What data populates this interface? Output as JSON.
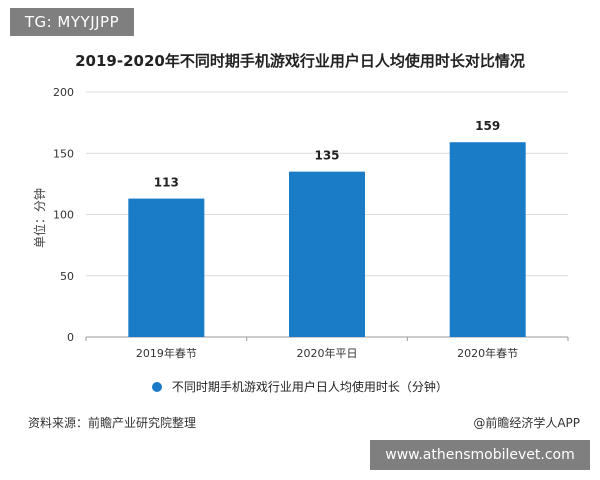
{
  "watermark_badge": "TG: MYYJJPP",
  "chart_data": {
    "type": "bar",
    "title": "2019-2020年不同时期手机游戏行业用户日人均使用时长对比情况",
    "categories": [
      "2019年春节",
      "2020年平日",
      "2020年春节"
    ],
    "series": [
      {
        "name": "不同时期手机游戏行业用户日人均使用时长（分钟）",
        "values": [
          113,
          135,
          159
        ]
      }
    ],
    "value_labels": [
      "113",
      "135",
      "159"
    ],
    "xlabel": "",
    "ylabel": "单位：分钟",
    "ylim": [
      0,
      200
    ],
    "yticks": [
      "0",
      "50",
      "100",
      "150",
      "200"
    ],
    "grid": true,
    "legend_position": "bottom",
    "bar_color": "#1a7cc7"
  },
  "footer": {
    "source": "资料来源：前瞻产业研究院整理",
    "credit": "@前瞻经济学人APP"
  },
  "url_badge": "www.athensmobilevet.com"
}
